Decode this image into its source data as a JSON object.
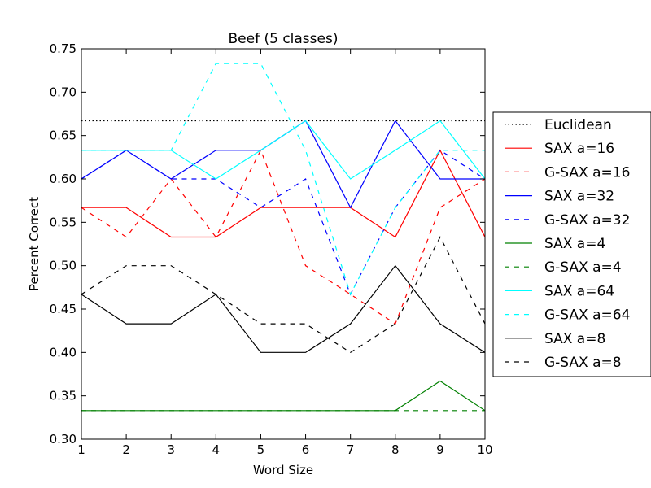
{
  "chart_data": {
    "type": "line",
    "title": "Beef (5 classes)",
    "xlabel": "Word Size",
    "ylabel": "Percent Correct",
    "xlim": [
      1,
      10
    ],
    "ylim": [
      0.3,
      0.75
    ],
    "xticks": [
      1,
      2,
      3,
      4,
      5,
      6,
      7,
      8,
      9,
      10
    ],
    "yticks": [
      0.3,
      0.35,
      0.4,
      0.45,
      0.5,
      0.55,
      0.6,
      0.65,
      0.7,
      0.75
    ],
    "xtick_labels": [
      "1",
      "2",
      "3",
      "4",
      "5",
      "6",
      "7",
      "8",
      "9",
      "10"
    ],
    "ytick_labels": [
      "0.30",
      "0.35",
      "0.40",
      "0.45",
      "0.50",
      "0.55",
      "0.60",
      "0.65",
      "0.70",
      "0.75"
    ],
    "grid": false,
    "legend_position": "right, outside",
    "x": [
      1,
      2,
      3,
      4,
      5,
      6,
      7,
      8,
      9,
      10
    ],
    "series": [
      {
        "name": "Euclidean",
        "color": "#000000",
        "style": "dotted",
        "values": [
          0.667,
          0.667,
          0.667,
          0.667,
          0.667,
          0.667,
          0.667,
          0.667,
          0.667,
          0.667
        ]
      },
      {
        "name": "SAX a=16",
        "color": "#ff0000",
        "style": "solid",
        "values": [
          0.567,
          0.567,
          0.533,
          0.533,
          0.567,
          0.567,
          0.567,
          0.533,
          0.633,
          0.533
        ]
      },
      {
        "name": "G-SAX a=16",
        "color": "#ff0000",
        "style": "dashed",
        "values": [
          0.567,
          0.533,
          0.6,
          0.533,
          0.633,
          0.5,
          0.467,
          0.433,
          0.567,
          0.6
        ]
      },
      {
        "name": "SAX a=32",
        "color": "#0000ff",
        "style": "solid",
        "values": [
          0.6,
          0.633,
          0.6,
          0.633,
          0.633,
          0.667,
          0.567,
          0.667,
          0.6,
          0.6
        ]
      },
      {
        "name": "G-SAX a=32",
        "color": "#0000ff",
        "style": "dashed",
        "values": [
          0.6,
          0.633,
          0.6,
          0.6,
          0.567,
          0.6,
          0.467,
          0.567,
          0.633,
          0.6
        ]
      },
      {
        "name": "SAX a=4",
        "color": "#008000",
        "style": "solid",
        "values": [
          0.333,
          0.333,
          0.333,
          0.333,
          0.333,
          0.333,
          0.333,
          0.333,
          0.367,
          0.333
        ]
      },
      {
        "name": "G-SAX a=4",
        "color": "#008000",
        "style": "dashed",
        "values": [
          0.333,
          0.333,
          0.333,
          0.333,
          0.333,
          0.333,
          0.333,
          0.333,
          0.333,
          0.333
        ]
      },
      {
        "name": "SAX a=64",
        "color": "#00ffff",
        "style": "solid",
        "values": [
          0.633,
          0.633,
          0.633,
          0.6,
          0.633,
          0.667,
          0.6,
          0.633,
          0.667,
          0.6
        ]
      },
      {
        "name": "G-SAX a=64",
        "color": "#00ffff",
        "style": "dashed",
        "values": [
          0.633,
          0.633,
          0.633,
          0.733,
          0.733,
          0.633,
          0.467,
          0.567,
          0.633,
          0.633
        ]
      },
      {
        "name": "SAX a=8",
        "color": "#000000",
        "style": "solid",
        "values": [
          0.467,
          0.433,
          0.433,
          0.467,
          0.4,
          0.4,
          0.433,
          0.5,
          0.433,
          0.4
        ]
      },
      {
        "name": "G-SAX a=8",
        "color": "#000000",
        "style": "dashed",
        "values": [
          0.467,
          0.5,
          0.5,
          0.467,
          0.433,
          0.433,
          0.4,
          0.433,
          0.533,
          0.433
        ]
      }
    ]
  }
}
